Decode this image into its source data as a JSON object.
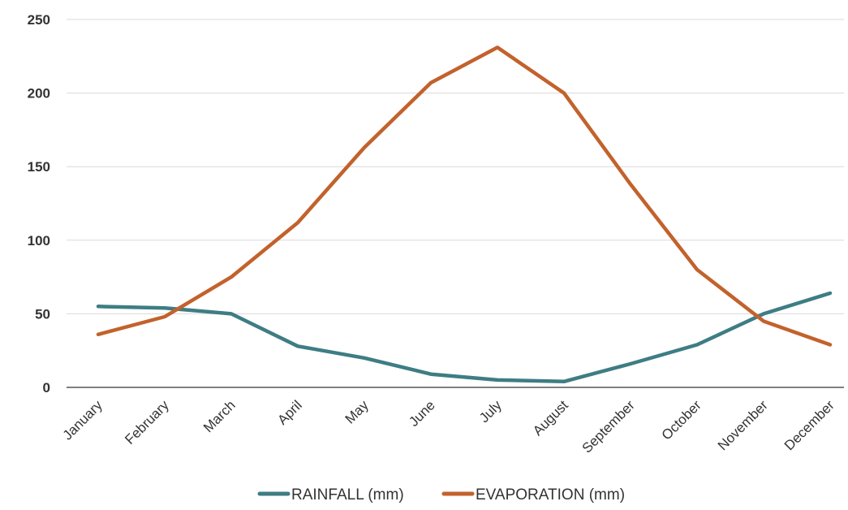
{
  "chart_data": {
    "type": "line",
    "title": "",
    "xlabel": "",
    "ylabel": "",
    "categories": [
      "January",
      "February",
      "March",
      "April",
      "May",
      "June",
      "July",
      "August",
      "September",
      "October",
      "November",
      "December"
    ],
    "ylim": [
      0,
      250
    ],
    "yticks": [
      "0",
      "50",
      "100",
      "150",
      "200",
      "250"
    ],
    "grid": true,
    "legend_position": "bottom",
    "series": [
      {
        "name": "RAINFALL (mm)",
        "color": "#3e7d84",
        "values": [
          55,
          54,
          50,
          28,
          20,
          9,
          5,
          4,
          16,
          29,
          50,
          64
        ]
      },
      {
        "name": "EVAPORATION (mm)",
        "color": "#c2622c",
        "values": [
          36,
          48,
          75,
          112,
          163,
          207,
          231,
          200,
          138,
          80,
          45,
          29
        ]
      }
    ]
  }
}
